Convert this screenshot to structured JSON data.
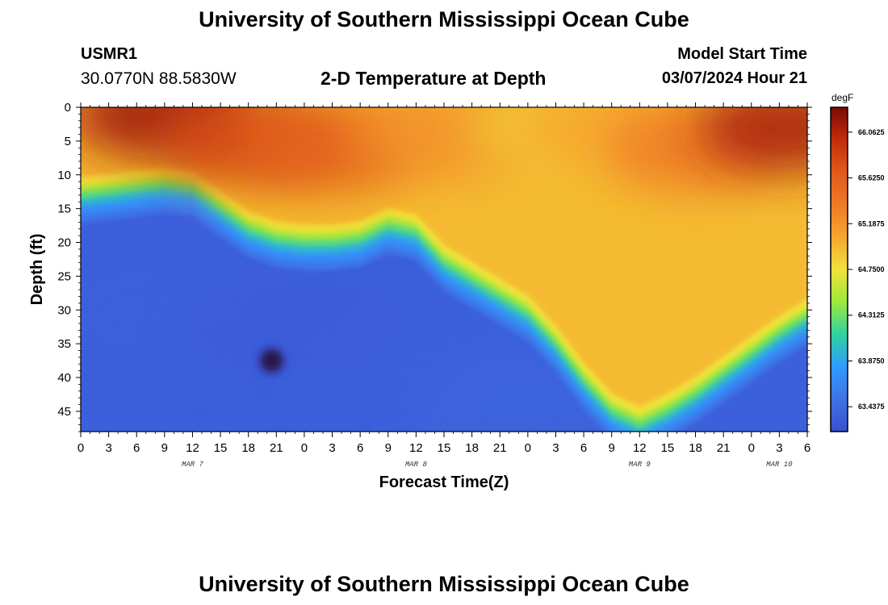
{
  "header": {
    "title": "University of Southern Mississippi Ocean Cube",
    "station_id": "USMR1",
    "station_location": "30.0770N  88.5830W",
    "subtitle": "2-D Temperature at Depth",
    "model_start_label": "Model Start Time",
    "model_start_value": "03/07/2024 Hour 21"
  },
  "footer": {
    "title": "University of Southern Mississippi Ocean Cube"
  },
  "colors": {
    "scale": [
      "#3a4fd0",
      "#3f72e6",
      "#2f9cff",
      "#2fd3a0",
      "#9ee83a",
      "#f0e23a",
      "#f6a62e",
      "#ef7a25",
      "#e05a1a",
      "#c42c0c",
      "#7a0a06"
    ],
    "cold_spot": "#2a1648",
    "frame": "#000000"
  },
  "chart_data": {
    "type": "heatmap",
    "title": "2-D Temperature at Depth",
    "xlabel": "Forecast Time(Z)",
    "ylabel": "Depth (ft)",
    "x_unit": "hours since MAR 7 00Z",
    "xlim": [
      0,
      78
    ],
    "ylim": [
      48,
      0
    ],
    "x_ticks": [
      0,
      3,
      6,
      9,
      12,
      15,
      18,
      21,
      24,
      27,
      30,
      33,
      36,
      39,
      42,
      45,
      48,
      51,
      54,
      57,
      60,
      63,
      66,
      69,
      72,
      75,
      78
    ],
    "x_tick_labels": [
      "0",
      "3",
      "6",
      "9",
      "12",
      "15",
      "18",
      "21",
      "0",
      "3",
      "6",
      "9",
      "12",
      "15",
      "18",
      "21",
      "0",
      "3",
      "6",
      "9",
      "12",
      "15",
      "18",
      "21",
      "0",
      "3",
      "6"
    ],
    "y_ticks": [
      0,
      5,
      10,
      15,
      20,
      25,
      30,
      35,
      40,
      45
    ],
    "y_tick_labels": [
      "0",
      "5",
      "10",
      "15",
      "20",
      "25",
      "30",
      "35",
      "40",
      "45"
    ],
    "date_labels": [
      {
        "text": "MAR 7",
        "x": 12
      },
      {
        "text": "MAR 8",
        "x": 36
      },
      {
        "text": "MAR 9",
        "x": 60
      },
      {
        "text": "MAR 10",
        "x": 75
      }
    ],
    "colorbar": {
      "unit": "degF",
      "range": [
        63.2,
        66.3
      ],
      "ticks": [
        66.0625,
        65.625,
        65.1875,
        64.75,
        64.3125,
        63.875,
        63.4375
      ],
      "tick_labels": [
        "66.0625",
        "65.6250",
        "65.1875",
        "64.7500",
        "64.3125",
        "63.8750",
        "63.4375"
      ]
    },
    "thermocline": {
      "x": [
        0,
        3,
        6,
        9,
        12,
        15,
        18,
        21,
        24,
        27,
        30,
        33,
        36,
        39,
        42,
        45,
        48,
        51,
        54,
        57,
        60,
        63,
        66,
        69,
        72,
        75,
        78
      ],
      "depth": [
        13,
        12.5,
        12,
        11.5,
        12,
        15,
        18,
        19.5,
        20,
        20,
        19.5,
        17.5,
        18.5,
        23,
        25.5,
        28,
        30.5,
        35,
        40.5,
        45,
        47,
        45,
        42.5,
        39.5,
        36.5,
        33.5,
        31
      ]
    },
    "surface_values": [
      {
        "x": 0,
        "depth": 0,
        "value": 65.2
      },
      {
        "x": 9,
        "depth": 1,
        "value": 66.15
      },
      {
        "x": 18,
        "depth": 5,
        "value": 65.8
      },
      {
        "x": 27,
        "depth": 6,
        "value": 65.6
      },
      {
        "x": 39,
        "depth": 4,
        "value": 65.2
      },
      {
        "x": 51,
        "depth": 3,
        "value": 64.9
      },
      {
        "x": 57,
        "depth": 3,
        "value": 65.05
      },
      {
        "x": 66,
        "depth": 6,
        "value": 65.35
      },
      {
        "x": 76,
        "depth": 3,
        "value": 66.1
      }
    ],
    "deep_values": [
      {
        "x": 10,
        "depth": 30,
        "value": 63.35
      },
      {
        "x": 24,
        "depth": 33,
        "value": 63.3
      },
      {
        "x": 36,
        "depth": 38,
        "value": 63.35
      },
      {
        "x": 48,
        "depth": 44,
        "value": 63.4
      }
    ],
    "cold_spot": {
      "x": 20.5,
      "depth": 37.5,
      "value": 62.9
    }
  }
}
